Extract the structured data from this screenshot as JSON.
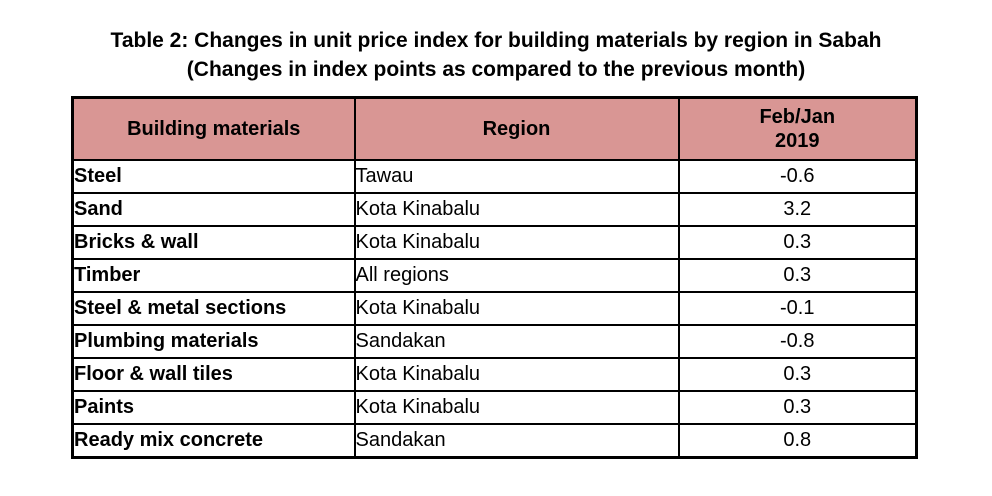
{
  "title": {
    "line1": "Table 2: Changes in unit price index for building materials by region in Sabah",
    "line2": "(Changes in index points as compared to the previous month)"
  },
  "table": {
    "headers": {
      "material": "Building materials",
      "region": "Region",
      "period": "Feb/Jan\n2019"
    },
    "rows": [
      {
        "material": "Steel",
        "region": "Tawau",
        "value": "-0.6"
      },
      {
        "material": "Sand",
        "region": "Kota Kinabalu",
        "value": "3.2"
      },
      {
        "material": "Bricks & wall",
        "region": "Kota Kinabalu",
        "value": "0.3"
      },
      {
        "material": "Timber",
        "region": "All regions",
        "value": "0.3"
      },
      {
        "material": "Steel & metal sections",
        "region": "Kota Kinabalu",
        "value": "-0.1"
      },
      {
        "material": "Plumbing materials",
        "region": "Sandakan",
        "value": "-0.8"
      },
      {
        "material": "Floor & wall tiles",
        "region": "Kota Kinabalu",
        "value": "0.3"
      },
      {
        "material": "Paints",
        "region": "Kota Kinabalu",
        "value": "0.3"
      },
      {
        "material": "Ready mix concrete",
        "region": "Sandakan",
        "value": "0.8"
      }
    ]
  },
  "colors": {
    "header_background": "#d99694",
    "border": "#000000"
  }
}
